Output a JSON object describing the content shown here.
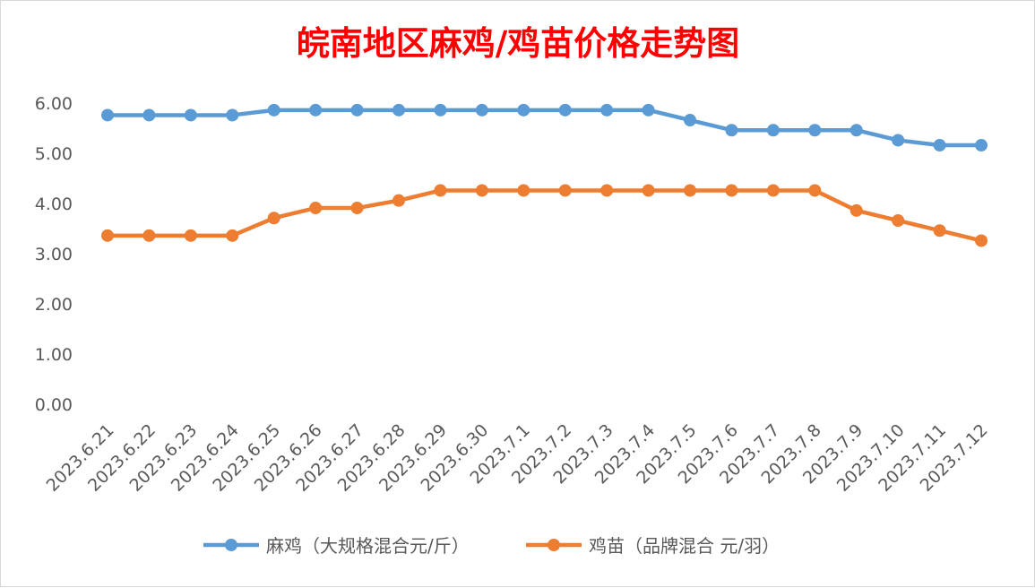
{
  "chart_data": {
    "type": "line",
    "title": "皖南地区麻鸡/鸡苗价格走势图",
    "title_color": "#ff0000",
    "categories": [
      "2023.6.21",
      "2023.6.22",
      "2023.6.23",
      "2023.6.24",
      "2023.6.25",
      "2023.6.26",
      "2023.6.27",
      "2023.6.28",
      "2023.6.29",
      "2023.6.30",
      "2023.7.1",
      "2023.7.2",
      "2023.7.3",
      "2023.7.4",
      "2023.7.5",
      "2023.7.6",
      "2023.7.7",
      "2023.7.8",
      "2023.7.9",
      "2023.7.10",
      "2023.7.11",
      "2023.7.12"
    ],
    "series": [
      {
        "name": "麻鸡（大规格混合元/斤）",
        "color": "#5b9bd5",
        "values": [
          5.76,
          5.76,
          5.76,
          5.76,
          5.86,
          5.86,
          5.86,
          5.86,
          5.86,
          5.86,
          5.86,
          5.86,
          5.86,
          5.86,
          5.66,
          5.46,
          5.46,
          5.46,
          5.46,
          5.26,
          5.16,
          5.16
        ]
      },
      {
        "name": "鸡苗（品牌混合 元/羽）",
        "color": "#ed7d31",
        "values": [
          3.36,
          3.36,
          3.36,
          3.36,
          3.71,
          3.91,
          3.91,
          4.06,
          4.26,
          4.26,
          4.26,
          4.26,
          4.26,
          4.26,
          4.26,
          4.26,
          4.26,
          4.26,
          3.86,
          3.66,
          3.46,
          3.26
        ]
      }
    ],
    "yticks": [
      "0.00",
      "1.00",
      "2.00",
      "3.00",
      "4.00",
      "5.00",
      "6.00"
    ],
    "ylim": [
      0,
      6
    ],
    "grid": false,
    "legend": "bottom-center"
  }
}
